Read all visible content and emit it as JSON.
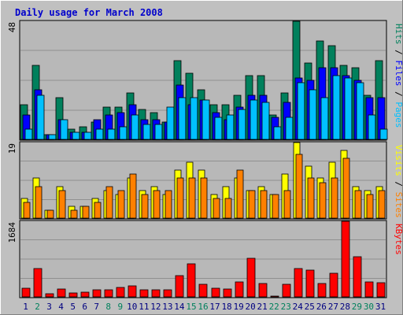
{
  "title": "Daily usage for March 2008",
  "colors": {
    "background": "#c0c0c0",
    "plot_bg": "#b8b8b8",
    "title": "#0000cc",
    "hits": "#00805c",
    "files": "#0000ff",
    "pages": "#00c0ff",
    "visits": "#ffff00",
    "sites": "#ff8000",
    "kbytes": "#ff0000",
    "weekend_day": "#00805c",
    "weekday": "#000080"
  },
  "chart_data": [
    {
      "type": "bar",
      "name": "hits-files-pages",
      "categories": [
        "1",
        "2",
        "3",
        "4",
        "5",
        "6",
        "7",
        "8",
        "9",
        "10",
        "11",
        "12",
        "13",
        "14",
        "15",
        "16",
        "17",
        "18",
        "19",
        "20",
        "21",
        "22",
        "23",
        "24",
        "25",
        "26",
        "27",
        "28",
        "29",
        "30",
        "31"
      ],
      "ymax_label": "48",
      "ymax": 48,
      "ylabel_parts": [
        {
          "text": "Pages",
          "series": "pages"
        },
        {
          "text": " / ",
          "series": "sep"
        },
        {
          "text": "Files",
          "series": "files"
        },
        {
          "text": " / ",
          "series": "sep"
        },
        {
          "text": "Hits",
          "series": "hits"
        }
      ],
      "series": [
        {
          "name": "Hits",
          "key": "hits",
          "values": [
            14,
            30,
            2,
            17,
            4,
            5,
            7,
            13,
            13,
            19,
            12,
            11,
            7,
            32,
            27,
            20,
            14,
            14,
            18,
            26,
            26,
            10,
            19,
            48,
            31,
            40,
            38,
            30,
            29,
            18,
            32
          ]
        },
        {
          "name": "Files",
          "key": "files",
          "values": [
            10,
            20,
            2,
            8,
            3,
            3,
            8,
            10,
            11,
            14,
            8,
            8,
            7,
            22,
            14,
            16,
            11,
            8,
            13,
            18,
            18,
            9,
            15,
            25,
            24,
            29,
            29,
            26,
            24,
            17,
            17
          ]
        },
        {
          "name": "Pages",
          "key": "pages",
          "values": [
            4,
            18,
            2,
            8,
            3,
            3,
            4,
            4,
            5,
            10,
            6,
            6,
            13,
            17,
            17,
            16,
            9,
            10,
            12,
            16,
            15,
            5,
            9,
            23,
            20,
            17,
            26,
            25,
            23,
            10,
            4
          ]
        }
      ],
      "weekend_days": [
        2,
        8,
        9,
        15,
        16,
        22,
        23,
        29,
        30
      ]
    },
    {
      "type": "bar",
      "name": "visits-sites",
      "categories": [
        "1",
        "2",
        "3",
        "4",
        "5",
        "6",
        "7",
        "8",
        "9",
        "10",
        "11",
        "12",
        "13",
        "14",
        "15",
        "16",
        "17",
        "18",
        "19",
        "20",
        "21",
        "22",
        "23",
        "24",
        "25",
        "26",
        "27",
        "28",
        "29",
        "30",
        "31"
      ],
      "ymax_label": "19",
      "ymax": 19,
      "ylabel_parts": [
        {
          "text": "Sites",
          "series": "sites"
        },
        {
          "text": " / ",
          "series": "sep"
        },
        {
          "text": "Visits",
          "series": "visits"
        }
      ],
      "series": [
        {
          "name": "Visits",
          "key": "visits",
          "values": [
            5,
            10,
            2,
            8,
            3,
            3,
            5,
            7,
            6,
            10,
            7,
            8,
            6,
            12,
            14,
            12,
            6,
            8,
            10,
            7,
            8,
            6,
            11,
            19,
            13,
            10,
            14,
            17,
            8,
            7,
            8
          ]
        },
        {
          "name": "Sites",
          "key": "sites",
          "values": [
            4,
            8,
            2,
            7,
            2,
            3,
            4,
            8,
            7,
            11,
            6,
            7,
            7,
            10,
            10,
            10,
            5,
            5,
            12,
            7,
            7,
            6,
            7,
            16,
            10,
            9,
            10,
            15,
            7,
            6,
            7
          ]
        }
      ]
    },
    {
      "type": "bar",
      "name": "kbytes",
      "categories": [
        "1",
        "2",
        "3",
        "4",
        "5",
        "6",
        "7",
        "8",
        "9",
        "10",
        "11",
        "12",
        "13",
        "14",
        "15",
        "16",
        "17",
        "18",
        "19",
        "20",
        "21",
        "22",
        "23",
        "24",
        "25",
        "26",
        "27",
        "28",
        "29",
        "30",
        "31"
      ],
      "ymax_label": "1684",
      "ymax": 1684,
      "ylabel_parts": [
        {
          "text": "KBytes",
          "series": "kbytes"
        }
      ],
      "series": [
        {
          "name": "KBytes",
          "key": "kbytes",
          "values": [
            200,
            640,
            70,
            180,
            90,
            100,
            150,
            150,
            210,
            240,
            160,
            150,
            150,
            470,
            740,
            280,
            190,
            170,
            340,
            860,
            290,
            10,
            280,
            640,
            600,
            300,
            530,
            1684,
            890,
            330,
            320
          ]
        }
      ]
    }
  ]
}
